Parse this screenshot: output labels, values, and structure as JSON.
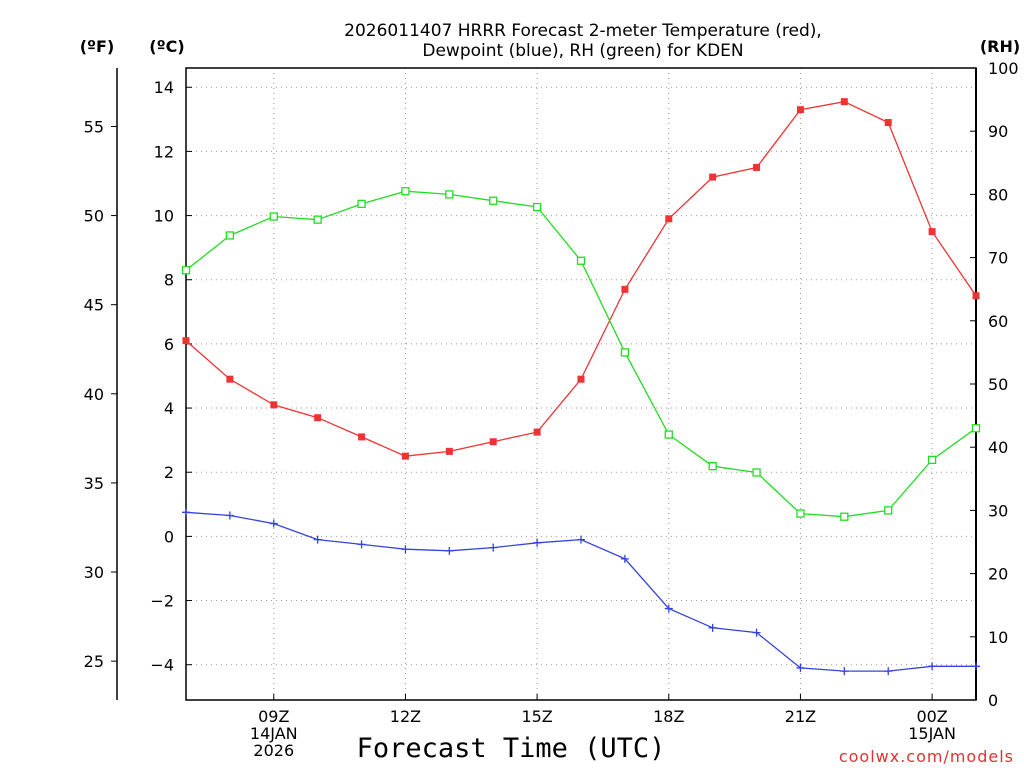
{
  "title_line1": "2026011407 HRRR Forecast 2-meter Temperature (red),",
  "title_line2": "Dewpoint (blue), RH (green) for KDEN",
  "units": {
    "fahrenheit": "(ºF)",
    "celsius": "(ºC)",
    "rh": "(RH)"
  },
  "xlabel": "Forecast Time (UTC)",
  "credit": "coolwx.com/models",
  "x_ticks": [
    {
      "hour": 9,
      "lines": [
        "09Z",
        "14JAN",
        "2026"
      ]
    },
    {
      "hour": 12,
      "lines": [
        "12Z"
      ]
    },
    {
      "hour": 15,
      "lines": [
        "15Z"
      ]
    },
    {
      "hour": 18,
      "lines": [
        "18Z"
      ]
    },
    {
      "hour": 21,
      "lines": [
        "21Z"
      ]
    },
    {
      "hour": 24,
      "lines": [
        "00Z",
        "15JAN"
      ]
    }
  ],
  "colors": {
    "temperature": "#ee3333",
    "dewpoint": "#3344dd",
    "rh": "#22dd22",
    "credit": "#dd3333"
  },
  "chart_data": {
    "type": "line",
    "x": [
      7,
      8,
      9,
      10,
      11,
      12,
      13,
      14,
      15,
      16,
      17,
      18,
      19,
      20,
      21,
      22,
      23,
      24,
      25
    ],
    "xlim": [
      7,
      25
    ],
    "ylim_celsius": [
      -5.1,
      14.6
    ],
    "ylim_fahrenheit": [
      22.82,
      58.28
    ],
    "ylim_rh": [
      0,
      100
    ],
    "celsius_ticks": [
      -4,
      -2,
      0,
      2,
      4,
      6,
      8,
      10,
      12,
      14
    ],
    "fahrenheit_ticks": [
      25,
      30,
      35,
      40,
      45,
      50,
      55
    ],
    "rh_ticks": [
      0,
      10,
      20,
      30,
      40,
      50,
      60,
      70,
      80,
      90,
      100
    ],
    "series": [
      {
        "name": "Temperature",
        "axis": "celsius",
        "marker": "filled-square",
        "values": [
          6.1,
          4.9,
          4.1,
          3.7,
          3.1,
          2.5,
          2.65,
          2.95,
          3.25,
          4.9,
          7.7,
          9.9,
          11.2,
          11.5,
          13.3,
          13.55,
          12.9,
          9.5,
          7.5
        ]
      },
      {
        "name": "Dewpoint",
        "axis": "celsius",
        "marker": "plus",
        "values": [
          0.75,
          0.65,
          0.4,
          -0.1,
          -0.25,
          -0.4,
          -0.45,
          -0.35,
          -0.2,
          -0.1,
          -0.7,
          -2.25,
          -2.85,
          -3.0,
          -4.1,
          -4.2,
          -4.2,
          -4.05,
          -4.05
        ]
      },
      {
        "name": "RH",
        "axis": "rh",
        "marker": "open-square",
        "values": [
          68,
          73.5,
          76.5,
          76,
          78.5,
          80.5,
          80,
          79,
          78,
          69.5,
          55,
          42,
          37,
          36,
          29.5,
          29,
          30,
          38,
          43
        ]
      }
    ]
  }
}
